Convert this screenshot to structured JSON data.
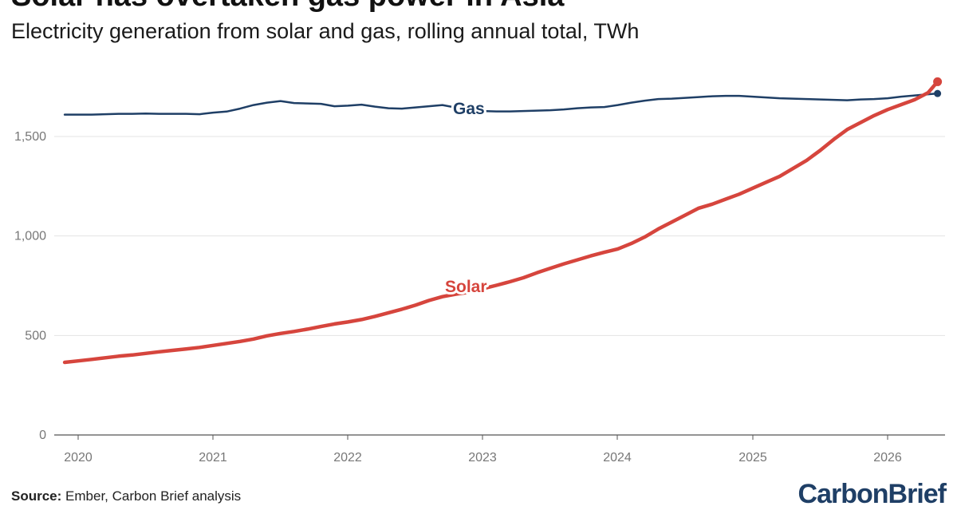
{
  "header": {
    "title": "Solar has overtaken gas power in Asia",
    "subtitle": "Electricity generation from solar and gas, rolling annual total, TWh"
  },
  "footer": {
    "source_label": "Source:",
    "source_text": "Ember, Carbon Brief analysis",
    "logo_text": "CarbonBrief"
  },
  "colors": {
    "gas": "#1f3f66",
    "solar": "#d6453d",
    "grid": "#e3e3e3",
    "axis": "#555555"
  },
  "chart_data": {
    "type": "line",
    "title": "Solar has overtaken gas power in Asia",
    "subtitle": "Electricity generation from solar and gas, rolling annual total, TWh",
    "xlabel": "",
    "ylabel": "",
    "x_ticks": [
      "2020",
      "2021",
      "2022",
      "2023",
      "2024",
      "2025",
      "2026"
    ],
    "y_ticks": [
      "0",
      "500",
      "1,000",
      "1,500"
    ],
    "y_tick_values": [
      0,
      500,
      1000,
      1500
    ],
    "xlim": [
      2019.9,
      2026.45
    ],
    "ylim": [
      0,
      1800
    ],
    "grid": true,
    "legend": "inline labels",
    "x": [
      2019.9,
      2020.0,
      2020.1,
      2020.2,
      2020.3,
      2020.4,
      2020.5,
      2020.6,
      2020.7,
      2020.8,
      2020.9,
      2021.0,
      2021.1,
      2021.2,
      2021.3,
      2021.4,
      2021.5,
      2021.6,
      2021.7,
      2021.8,
      2021.9,
      2022.0,
      2022.1,
      2022.2,
      2022.3,
      2022.4,
      2022.5,
      2022.6,
      2022.7,
      2022.8,
      2022.9,
      2023.0,
      2023.1,
      2023.2,
      2023.3,
      2023.4,
      2023.5,
      2023.6,
      2023.7,
      2023.8,
      2023.9,
      2024.0,
      2024.1,
      2024.2,
      2024.3,
      2024.4,
      2024.5,
      2024.6,
      2024.7,
      2024.8,
      2024.9,
      2025.0,
      2025.1,
      2025.2,
      2025.3,
      2025.4,
      2025.5,
      2025.6,
      2025.7,
      2025.8,
      2025.9,
      2026.0,
      2026.1,
      2026.2,
      2026.3,
      2026.37
    ],
    "series": [
      {
        "name": "Gas",
        "color": "#1f3f66",
        "values": [
          1610,
          1610,
          1610,
          1612,
          1614,
          1614,
          1615,
          1614,
          1614,
          1614,
          1612,
          1620,
          1625,
          1640,
          1658,
          1670,
          1678,
          1668,
          1666,
          1664,
          1652,
          1655,
          1660,
          1650,
          1642,
          1640,
          1646,
          1652,
          1658,
          1645,
          1632,
          1628,
          1626,
          1626,
          1628,
          1630,
          1632,
          1636,
          1642,
          1646,
          1648,
          1658,
          1670,
          1680,
          1688,
          1690,
          1694,
          1698,
          1702,
          1704,
          1704,
          1700,
          1696,
          1692,
          1690,
          1688,
          1686,
          1684,
          1682,
          1686,
          1688,
          1692,
          1700,
          1706,
          1712,
          1716
        ]
      },
      {
        "name": "Solar",
        "color": "#d6453d",
        "values": [
          365,
          372,
          380,
          388,
          396,
          402,
          410,
          418,
          425,
          432,
          440,
          450,
          460,
          470,
          482,
          498,
          510,
          520,
          532,
          545,
          558,
          568,
          580,
          596,
          614,
          632,
          652,
          676,
          695,
          708,
          718,
          735,
          752,
          770,
          790,
          815,
          838,
          860,
          880,
          900,
          918,
          935,
          962,
          995,
          1035,
          1070,
          1105,
          1140,
          1160,
          1185,
          1210,
          1240,
          1270,
          1300,
          1340,
          1380,
          1430,
          1485,
          1535,
          1570,
          1605,
          1635,
          1660,
          1685,
          1720,
          1775
        ]
      }
    ],
    "annotations": [
      {
        "text": "Gas",
        "series": "Gas"
      },
      {
        "text": "Solar",
        "series": "Solar"
      }
    ]
  }
}
